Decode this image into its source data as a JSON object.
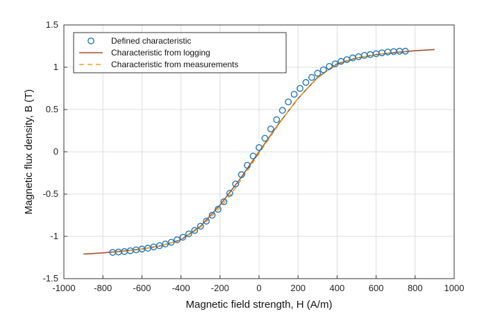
{
  "chart_data": {
    "type": "line",
    "title": "",
    "xlabel": "Magnetic field strength, H (A/m)",
    "ylabel": "Magnetic flux density, B (T)",
    "xlim": [
      -1000,
      1000
    ],
    "ylim": [
      -1.5,
      1.5
    ],
    "xticks": [
      -1000,
      -800,
      -600,
      -400,
      -200,
      0,
      200,
      400,
      600,
      800,
      1000
    ],
    "yticks": [
      -1.5,
      -1,
      -0.5,
      0,
      0.5,
      1,
      1.5
    ],
    "xtick_labels": [
      "-1000",
      "-800",
      "-600",
      "-400",
      "-200",
      "0",
      "200",
      "400",
      "600",
      "800",
      "1000"
    ],
    "ytick_labels": [
      "-1.5",
      "-1",
      "-0.5",
      "0",
      "0.5",
      "1",
      "1.5"
    ],
    "grid": true,
    "legend_position": "top-left",
    "series": [
      {
        "name": "Defined characteristic",
        "style": "markers",
        "marker": "circle",
        "color": "#1f77b4",
        "x": [
          -750,
          -720,
          -690,
          -660,
          -630,
          -600,
          -570,
          -540,
          -510,
          -480,
          -450,
          -420,
          -390,
          -360,
          -330,
          -300,
          -270,
          -240,
          -210,
          -180,
          -150,
          -120,
          -90,
          -60,
          -30,
          0,
          30,
          60,
          90,
          120,
          150,
          180,
          210,
          240,
          270,
          300,
          330,
          360,
          390,
          420,
          450,
          480,
          510,
          540,
          570,
          600,
          630,
          660,
          690,
          720,
          750
        ],
        "y": [
          -1.19,
          -1.185,
          -1.18,
          -1.17,
          -1.16,
          -1.15,
          -1.14,
          -1.125,
          -1.11,
          -1.09,
          -1.07,
          -1.04,
          -1.01,
          -0.97,
          -0.93,
          -0.88,
          -0.82,
          -0.75,
          -0.68,
          -0.59,
          -0.49,
          -0.38,
          -0.27,
          -0.16,
          -0.05,
          0.05,
          0.16,
          0.27,
          0.38,
          0.49,
          0.59,
          0.68,
          0.75,
          0.82,
          0.88,
          0.93,
          0.97,
          1.01,
          1.04,
          1.07,
          1.09,
          1.11,
          1.125,
          1.14,
          1.15,
          1.16,
          1.17,
          1.18,
          1.185,
          1.19,
          1.19
        ]
      },
      {
        "name": "Characteristic from logging",
        "style": "solid",
        "color": "#a0522d",
        "x": [
          -900,
          -800,
          -700,
          -600,
          -500,
          -400,
          -300,
          -200,
          -100,
          0,
          100,
          200,
          300,
          400,
          500,
          600,
          700,
          800,
          900
        ],
        "y": [
          -1.21,
          -1.195,
          -1.175,
          -1.15,
          -1.11,
          -1.04,
          -0.88,
          -0.63,
          -0.33,
          0.0,
          0.33,
          0.63,
          0.88,
          1.04,
          1.11,
          1.15,
          1.175,
          1.195,
          1.21
        ]
      },
      {
        "name": "Characteristic from measurements",
        "style": "dashed",
        "color": "#f0a020",
        "x": [
          -750,
          -700,
          -650,
          -600,
          -550,
          -500,
          -450,
          -400,
          -350,
          -300,
          -250,
          -200,
          -150,
          -100,
          -50,
          0,
          50,
          100,
          150,
          200,
          250,
          300,
          350,
          400,
          450,
          500,
          550,
          600,
          650,
          700,
          750
        ],
        "y": [
          -1.19,
          -1.18,
          -1.165,
          -1.15,
          -1.13,
          -1.11,
          -1.075,
          -1.04,
          -0.97,
          -0.89,
          -0.78,
          -0.66,
          -0.52,
          -0.36,
          -0.19,
          -0.02,
          0.15,
          0.32,
          0.48,
          0.63,
          0.76,
          0.87,
          0.96,
          1.03,
          1.07,
          1.11,
          1.13,
          1.15,
          1.165,
          1.18,
          1.19
        ]
      }
    ]
  }
}
